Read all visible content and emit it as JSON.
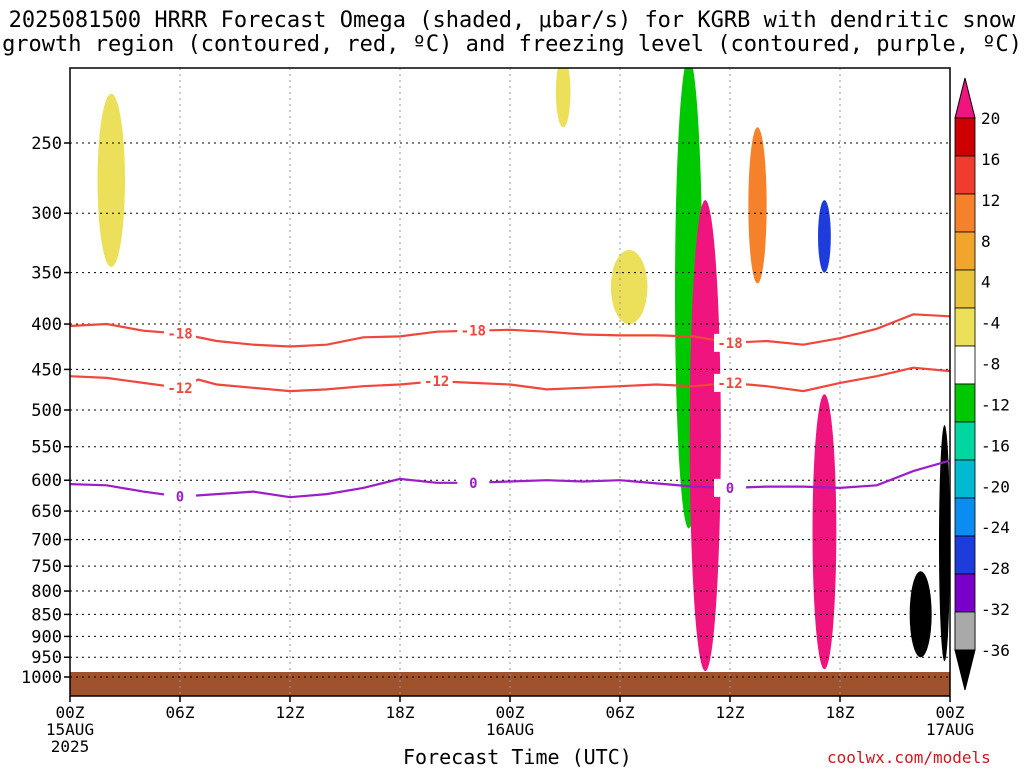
{
  "title_line1": "2025081500 HRRR Forecast Omega (shaded, μbar/s) for KGRB with dendritic snow",
  "title_line2": "growth region (contoured, red, ºC) and freezing level (contoured, purple, ºC)",
  "credit": "coolwx.com/models",
  "chart_data": {
    "type": "heatmap",
    "title": "2025081500 HRRR Forecast Omega (shaded, μbar/s) for KGRB with dendritic snow growth region (contoured, red, ºC) and freezing level (contoured, purple, ºC)",
    "xlabel": "Forecast Time (UTC)",
    "ylabel": "",
    "x_ticks": [
      {
        "hour": 0,
        "lines": [
          "00Z",
          "15AUG",
          "2025"
        ]
      },
      {
        "hour": 6,
        "lines": [
          "06Z"
        ]
      },
      {
        "hour": 12,
        "lines": [
          "12Z"
        ]
      },
      {
        "hour": 18,
        "lines": [
          "18Z"
        ]
      },
      {
        "hour": 24,
        "lines": [
          "00Z",
          "16AUG"
        ]
      },
      {
        "hour": 30,
        "lines": [
          "06Z"
        ]
      },
      {
        "hour": 36,
        "lines": [
          "12Z"
        ]
      },
      {
        "hour": 42,
        "lines": [
          "18Z"
        ]
      },
      {
        "hour": 48,
        "lines": [
          "00Z",
          "17AUG"
        ]
      }
    ],
    "xlim": [
      0,
      48
    ],
    "y_ticks": [
      250,
      300,
      350,
      400,
      450,
      500,
      550,
      600,
      650,
      700,
      750,
      800,
      850,
      900,
      950,
      1000
    ],
    "ylim": [
      200,
      1025
    ],
    "y_scale": "log-pressure (inverted)",
    "grid": true,
    "colorbar": {
      "levels": [
        20,
        16,
        12,
        8,
        4,
        -4,
        -8,
        -12,
        -16,
        -20,
        -24,
        -28,
        -32,
        -36
      ],
      "colors": [
        "#cc0000",
        "#f03c2c",
        "#f5822a",
        "#f2a52d",
        "#e8c53a",
        "#ece05a",
        "#ffffff",
        "#00c800",
        "#00d7a0",
        "#00b9d2",
        "#0a8cf0",
        "#1e3cdc",
        "#7800c8",
        "#b400c8",
        "#a9a9a9",
        "#000000"
      ],
      "top_arrow_color": "#f0147f",
      "bottom_arrow_color": "#000000"
    },
    "contours": [
      {
        "label": "-18",
        "color": "#f0463c",
        "points": [
          [
            0,
            402
          ],
          [
            2,
            400
          ],
          [
            4,
            407
          ],
          [
            6,
            410
          ],
          [
            8,
            418
          ],
          [
            10,
            422
          ],
          [
            12,
            424
          ],
          [
            14,
            422
          ],
          [
            16,
            414
          ],
          [
            18,
            413
          ],
          [
            20,
            408
          ],
          [
            22,
            407
          ],
          [
            24,
            406
          ],
          [
            26,
            408
          ],
          [
            28,
            411
          ],
          [
            30,
            412
          ],
          [
            32,
            412
          ],
          [
            34,
            413
          ],
          [
            36,
            420
          ],
          [
            38,
            418
          ],
          [
            40,
            422
          ],
          [
            42,
            415
          ],
          [
            44,
            405
          ],
          [
            46,
            390
          ],
          [
            48,
            392
          ]
        ]
      },
      {
        "label": "-12",
        "color": "#f0463c",
        "points": [
          [
            0,
            458
          ],
          [
            2,
            460
          ],
          [
            4,
            466
          ],
          [
            6,
            472
          ],
          [
            7,
            462
          ],
          [
            8,
            468
          ],
          [
            10,
            472
          ],
          [
            12,
            476
          ],
          [
            14,
            474
          ],
          [
            16,
            470
          ],
          [
            18,
            468
          ],
          [
            20,
            464
          ],
          [
            22,
            466
          ],
          [
            24,
            468
          ],
          [
            26,
            474
          ],
          [
            28,
            472
          ],
          [
            30,
            470
          ],
          [
            32,
            468
          ],
          [
            34,
            470
          ],
          [
            36,
            466
          ],
          [
            38,
            470
          ],
          [
            40,
            476
          ],
          [
            42,
            466
          ],
          [
            44,
            458
          ],
          [
            46,
            448
          ],
          [
            48,
            452
          ]
        ]
      },
      {
        "label": "0",
        "color": "#9b1ec8",
        "points": [
          [
            0,
            606
          ],
          [
            2,
            608
          ],
          [
            4,
            618
          ],
          [
            6,
            626
          ],
          [
            8,
            622
          ],
          [
            10,
            618
          ],
          [
            12,
            627
          ],
          [
            14,
            622
          ],
          [
            16,
            612
          ],
          [
            18,
            598
          ],
          [
            20,
            604
          ],
          [
            22,
            604
          ],
          [
            24,
            602
          ],
          [
            26,
            600
          ],
          [
            28,
            602
          ],
          [
            30,
            600
          ],
          [
            32,
            605
          ],
          [
            34,
            610
          ],
          [
            36,
            612
          ],
          [
            38,
            610
          ],
          [
            40,
            610
          ],
          [
            42,
            612
          ],
          [
            44,
            608
          ],
          [
            46,
            586
          ],
          [
            48,
            570
          ]
        ]
      }
    ],
    "shaded_regions": [
      {
        "color": "#ece05a",
        "hours": [
          1.5,
          3.0
        ],
        "pressure": [
          220,
          345
        ]
      },
      {
        "color": "#ece05a",
        "hours": [
          26.5,
          27.3
        ],
        "pressure": [
          200,
          240
        ]
      },
      {
        "color": "#ece05a",
        "hours": [
          29.5,
          31.5
        ],
        "pressure": [
          330,
          400
        ]
      },
      {
        "color": "#00c800",
        "hours": [
          33.0,
          34.5
        ],
        "pressure": [
          200,
          680
        ]
      },
      {
        "color": "#f0147f",
        "hours": [
          33.8,
          35.5
        ],
        "pressure": [
          290,
          985
        ]
      },
      {
        "color": "#f5822a",
        "hours": [
          37.0,
          38.0
        ],
        "pressure": [
          240,
          360
        ]
      },
      {
        "color": "#f0147f",
        "hours": [
          40.5,
          41.8
        ],
        "pressure": [
          480,
          980
        ]
      },
      {
        "color": "#1e3cdc",
        "hours": [
          40.8,
          41.5
        ],
        "pressure": [
          290,
          350
        ]
      },
      {
        "color": "#000000",
        "hours": [
          45.8,
          47.0
        ],
        "pressure": [
          760,
          950
        ]
      },
      {
        "color": "#000000",
        "hours": [
          47.4,
          48.0
        ],
        "pressure": [
          520,
          960
        ]
      }
    ]
  }
}
